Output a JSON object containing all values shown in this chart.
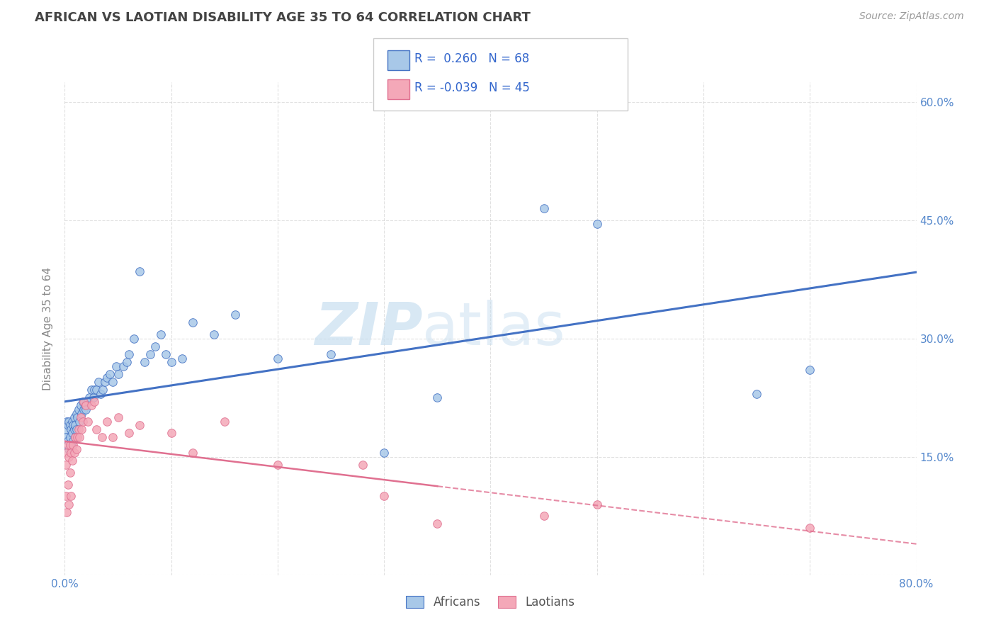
{
  "title": "AFRICAN VS LAOTIAN DISABILITY AGE 35 TO 64 CORRELATION CHART",
  "source": "Source: ZipAtlas.com",
  "ylabel": "Disability Age 35 to 64",
  "x_min": 0.0,
  "x_max": 0.8,
  "y_min": 0.0,
  "y_max": 0.625,
  "watermark_zip": "ZIP",
  "watermark_atlas": "atlas",
  "legend_african_r": "0.260",
  "legend_african_n": "68",
  "legend_laotian_r": "-0.039",
  "legend_laotian_n": "45",
  "african_color": "#a8c8e8",
  "african_edge_color": "#4472c4",
  "laotian_color": "#f4a8b8",
  "laotian_edge_color": "#e07090",
  "african_line_color": "#4472c4",
  "laotian_line_color": "#e07090",
  "african_x": [
    0.001,
    0.002,
    0.002,
    0.003,
    0.003,
    0.004,
    0.004,
    0.005,
    0.005,
    0.006,
    0.006,
    0.007,
    0.007,
    0.008,
    0.008,
    0.009,
    0.009,
    0.01,
    0.01,
    0.011,
    0.011,
    0.012,
    0.013,
    0.014,
    0.015,
    0.016,
    0.017,
    0.018,
    0.019,
    0.02,
    0.022,
    0.023,
    0.025,
    0.027,
    0.028,
    0.03,
    0.032,
    0.034,
    0.036,
    0.038,
    0.04,
    0.042,
    0.045,
    0.048,
    0.05,
    0.055,
    0.058,
    0.06,
    0.065,
    0.07,
    0.075,
    0.08,
    0.085,
    0.09,
    0.095,
    0.1,
    0.11,
    0.12,
    0.14,
    0.16,
    0.2,
    0.25,
    0.3,
    0.35,
    0.45,
    0.5,
    0.65,
    0.7
  ],
  "african_y": [
    0.185,
    0.195,
    0.175,
    0.19,
    0.17,
    0.195,
    0.16,
    0.19,
    0.175,
    0.185,
    0.165,
    0.195,
    0.18,
    0.19,
    0.17,
    0.185,
    0.2,
    0.19,
    0.175,
    0.205,
    0.185,
    0.2,
    0.21,
    0.195,
    0.215,
    0.205,
    0.22,
    0.21,
    0.215,
    0.21,
    0.22,
    0.225,
    0.235,
    0.225,
    0.235,
    0.235,
    0.245,
    0.23,
    0.235,
    0.245,
    0.25,
    0.255,
    0.245,
    0.265,
    0.255,
    0.265,
    0.27,
    0.28,
    0.3,
    0.385,
    0.27,
    0.28,
    0.29,
    0.305,
    0.28,
    0.27,
    0.275,
    0.32,
    0.305,
    0.33,
    0.275,
    0.28,
    0.155,
    0.225,
    0.465,
    0.445,
    0.23,
    0.26
  ],
  "laotian_x": [
    0.001,
    0.001,
    0.002,
    0.002,
    0.003,
    0.003,
    0.004,
    0.004,
    0.005,
    0.005,
    0.006,
    0.006,
    0.007,
    0.008,
    0.009,
    0.01,
    0.011,
    0.012,
    0.013,
    0.014,
    0.015,
    0.016,
    0.017,
    0.018,
    0.02,
    0.022,
    0.025,
    0.028,
    0.03,
    0.035,
    0.04,
    0.045,
    0.05,
    0.06,
    0.07,
    0.1,
    0.12,
    0.15,
    0.2,
    0.28,
    0.3,
    0.35,
    0.45,
    0.5,
    0.7
  ],
  "laotian_y": [
    0.14,
    0.1,
    0.155,
    0.08,
    0.165,
    0.115,
    0.15,
    0.09,
    0.165,
    0.13,
    0.155,
    0.1,
    0.145,
    0.165,
    0.155,
    0.175,
    0.16,
    0.175,
    0.185,
    0.175,
    0.2,
    0.185,
    0.195,
    0.22,
    0.215,
    0.195,
    0.215,
    0.22,
    0.185,
    0.175,
    0.195,
    0.175,
    0.2,
    0.18,
    0.19,
    0.18,
    0.155,
    0.195,
    0.14,
    0.14,
    0.1,
    0.065,
    0.075,
    0.09,
    0.06
  ],
  "title_color": "#444444",
  "source_color": "#999999",
  "tick_color": "#5588cc",
  "label_color": "#888888",
  "grid_color": "#cccccc",
  "watermark_color_zip": "#c8dff0",
  "watermark_color_atlas": "#c8dff0"
}
